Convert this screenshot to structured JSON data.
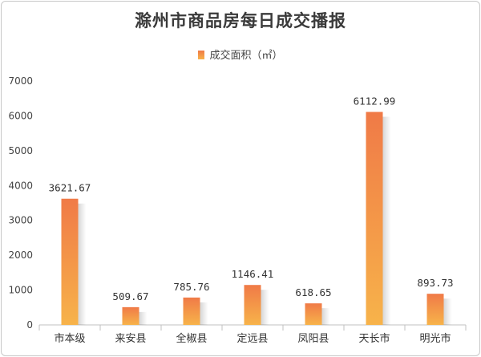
{
  "chart_data": {
    "type": "bar",
    "title": "滁州市商品房每日成交播报",
    "legend_label": "成交面积（㎡）",
    "legend_position": "top",
    "categories": [
      "市本级",
      "来安县",
      "全椒县",
      "定远县",
      "凤阳县",
      "天长市",
      "明光市"
    ],
    "series": [
      {
        "name": "成交面积（㎡）",
        "values": [
          3621.67,
          509.67,
          785.76,
          1146.41,
          618.65,
          6112.99,
          893.73
        ]
      }
    ],
    "data_labels": [
      "3621.67",
      "509.67",
      "785.76",
      "1146.41",
      "618.65",
      "6112.99",
      "893.73"
    ],
    "y_ticks": [
      "0",
      "1000",
      "2000",
      "3000",
      "4000",
      "5000",
      "6000",
      "7000"
    ],
    "ylim": [
      0,
      7000
    ],
    "grid": false,
    "colors": {
      "bar_top": "#f07a47",
      "bar_bottom": "#f7b34a",
      "axis": "#c0c0c0"
    }
  }
}
